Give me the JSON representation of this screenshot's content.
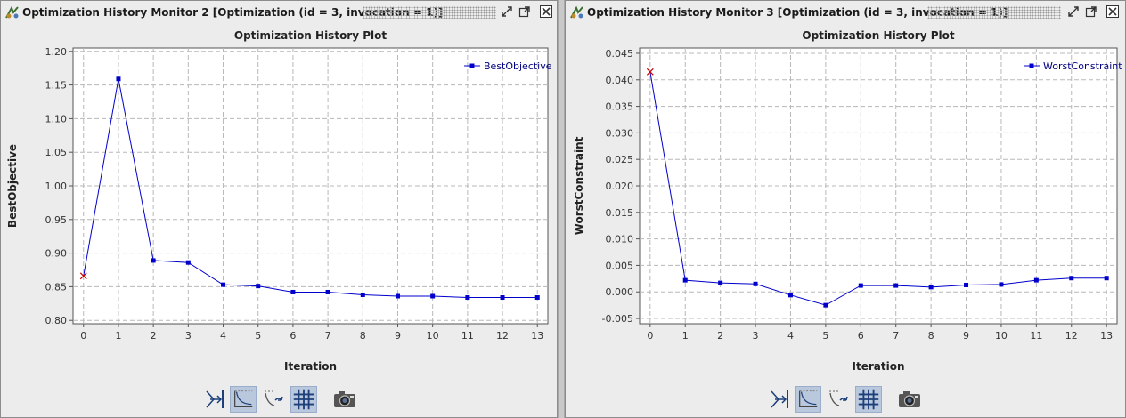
{
  "panels": [
    {
      "window_title": "Optimization History Monitor 2 [Optimization (id = 3, invocation = 1)]",
      "icons": [
        "app-icon",
        "restore-icon",
        "maximize-icon",
        "close-icon"
      ],
      "toolbar": [
        "auto-range-icon",
        "curve-fit-icon",
        "edit-curve-icon",
        "grid-icon",
        "camera-icon"
      ]
    },
    {
      "window_title": "Optimization History Monitor 3 [Optimization (id = 3, invocation = 1)]",
      "icons": [
        "app-icon",
        "restore-icon",
        "maximize-icon",
        "close-icon"
      ],
      "toolbar": [
        "auto-range-icon",
        "curve-fit-icon",
        "edit-curve-icon",
        "grid-icon",
        "camera-icon"
      ]
    }
  ],
  "chart_data": [
    {
      "type": "line",
      "title": "Optimization History Plot",
      "xlabel": "Iteration",
      "ylabel": "BestObjective",
      "x": [
        0,
        1,
        2,
        3,
        4,
        5,
        6,
        7,
        8,
        9,
        10,
        11,
        12,
        13
      ],
      "series": [
        {
          "name": "BestObjective",
          "values": [
            0.866,
            1.159,
            0.889,
            0.886,
            0.853,
            0.851,
            0.842,
            0.842,
            0.838,
            0.836,
            0.836,
            0.834,
            0.834,
            0.834
          ],
          "color": "#0000cc",
          "first_point_marker": "x",
          "first_point_color": "#cc0000"
        }
      ],
      "xticks": [
        "0",
        "1",
        "2",
        "3",
        "4",
        "5",
        "6",
        "7",
        "8",
        "9",
        "10",
        "11",
        "12",
        "13"
      ],
      "yticks": [
        "0.80",
        "0.85",
        "0.90",
        "0.95",
        "1.00",
        "1.05",
        "1.10",
        "1.15",
        "1.20"
      ],
      "xlim": [
        -0.3,
        13.3
      ],
      "ylim": [
        0.795,
        1.205
      ],
      "grid": true,
      "legend": "top-right"
    },
    {
      "type": "line",
      "title": "Optimization History Plot",
      "xlabel": "Iteration",
      "ylabel": "WorstConstraint",
      "x": [
        0,
        1,
        2,
        3,
        4,
        5,
        6,
        7,
        8,
        9,
        10,
        11,
        12,
        13
      ],
      "series": [
        {
          "name": "WorstConstraint",
          "values": [
            0.0415,
            0.0022,
            0.0017,
            0.0015,
            -0.0006,
            -0.0025,
            0.0012,
            0.0012,
            0.0009,
            0.0013,
            0.0014,
            0.0022,
            0.0026,
            0.0026
          ],
          "color": "#0000cc",
          "first_point_marker": "x",
          "first_point_color": "#cc0000"
        }
      ],
      "xticks": [
        "0",
        "1",
        "2",
        "3",
        "4",
        "5",
        "6",
        "7",
        "8",
        "9",
        "10",
        "11",
        "12",
        "13"
      ],
      "yticks": [
        "-0.005",
        "0.000",
        "0.005",
        "0.010",
        "0.015",
        "0.020",
        "0.025",
        "0.030",
        "0.035",
        "0.040",
        "0.045"
      ],
      "xlim": [
        -0.3,
        13.3
      ],
      "ylim": [
        -0.006,
        0.046
      ],
      "grid": true,
      "legend": "top-right"
    }
  ]
}
